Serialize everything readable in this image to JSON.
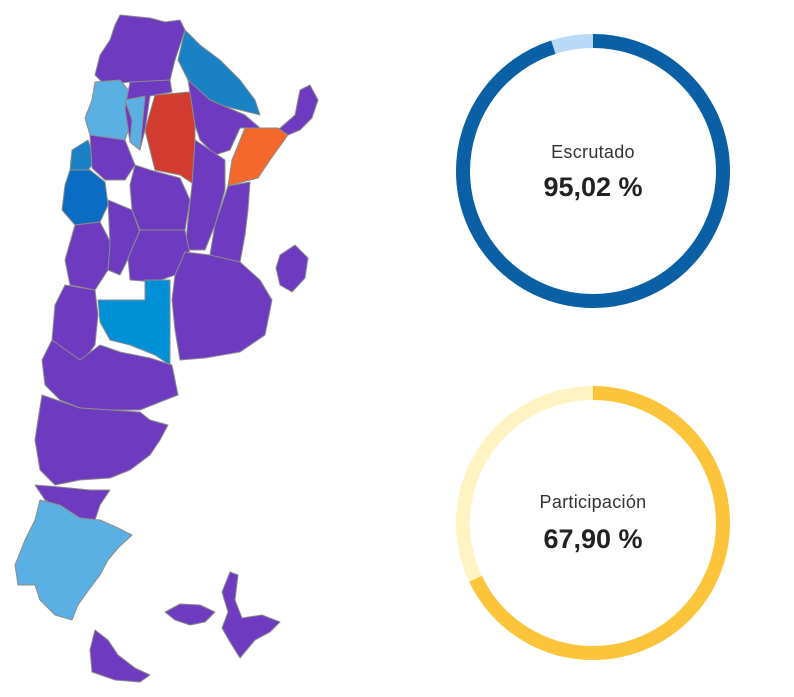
{
  "colors": {
    "purple": "#6e3bc0",
    "light_blue": "#5ab0e2",
    "mid_blue": "#0090d6",
    "dark_blue": "#0a6cc2",
    "steel_blue": "#1a82c4",
    "red": "#d23b30",
    "orange": "#f4682c"
  },
  "map": {
    "provinces": [
      {
        "name": "jujuy",
        "color": "purple"
      },
      {
        "name": "salta-west",
        "color": "light_blue"
      },
      {
        "name": "salta-east",
        "color": "purple"
      },
      {
        "name": "formosa",
        "color": "steel_blue"
      },
      {
        "name": "tucuman-strip",
        "color": "light_blue"
      },
      {
        "name": "santiago-del-estero",
        "color": "red"
      },
      {
        "name": "chaco",
        "color": "purple"
      },
      {
        "name": "misiones",
        "color": "purple"
      },
      {
        "name": "corrientes",
        "color": "orange"
      },
      {
        "name": "catamarca",
        "color": "steel_blue"
      },
      {
        "name": "la-rioja-north",
        "color": "purple"
      },
      {
        "name": "la-rioja",
        "color": "dark_blue"
      },
      {
        "name": "cordoba-north",
        "color": "purple"
      },
      {
        "name": "santa-fe",
        "color": "purple"
      },
      {
        "name": "entre-rios",
        "color": "purple"
      },
      {
        "name": "san-juan",
        "color": "purple"
      },
      {
        "name": "san-luis",
        "color": "purple"
      },
      {
        "name": "cordoba",
        "color": "purple"
      },
      {
        "name": "buenos-aires",
        "color": "purple"
      },
      {
        "name": "caba",
        "color": "purple"
      },
      {
        "name": "mendoza",
        "color": "purple"
      },
      {
        "name": "la-pampa",
        "color": "mid_blue"
      },
      {
        "name": "neuquen",
        "color": "purple"
      },
      {
        "name": "rio-negro",
        "color": "purple"
      },
      {
        "name": "chubut",
        "color": "purple"
      },
      {
        "name": "santa-cruz",
        "color": "light_blue"
      },
      {
        "name": "tierra-del-fuego",
        "color": "purple"
      },
      {
        "name": "malvinas",
        "color": "purple"
      },
      {
        "name": "antartida",
        "color": "purple"
      }
    ]
  },
  "gauges": [
    {
      "label": "Escrutado",
      "value_text": "95,02 %",
      "percent": 95.02,
      "color": "#0a5fa5",
      "track": "#b9daf6"
    },
    {
      "label": "Participación",
      "value_text": "67,90 %",
      "percent": 67.9,
      "color": "#fcc43a",
      "track": "#fff3c4"
    }
  ]
}
